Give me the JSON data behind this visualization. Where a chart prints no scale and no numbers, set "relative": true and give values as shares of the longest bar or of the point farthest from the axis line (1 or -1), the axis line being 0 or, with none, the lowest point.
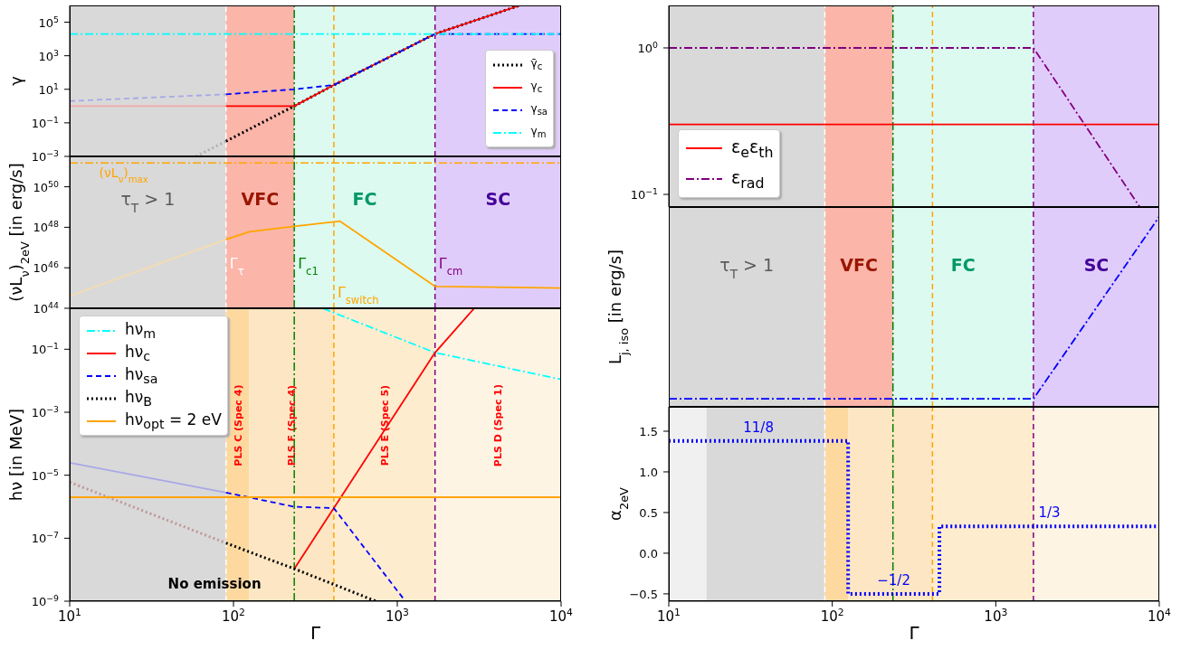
{
  "chart_data": [
    {
      "type": "line",
      "ylabel": "γ",
      "log": "xy",
      "xlim": [
        10,
        10000
      ],
      "ylim": [
        0.001,
        1000000
      ],
      "yticks": [
        {
          "value": 0.001,
          "label": "10$^{−3}$"
        },
        {
          "value": 0.1,
          "label": "10$^{−1}$"
        },
        {
          "value": 10,
          "label": "10$^{1}$"
        },
        {
          "value": 1000,
          "label": "10$^{3}$"
        },
        {
          "value": 100000,
          "label": "10$^{5}$"
        }
      ],
      "tick_labels": "y",
      "legend": "bottom right",
      "bands": [
        {
          "axis": "x",
          "from": 10,
          "to": 90,
          "color": "#d9d9d9"
        },
        {
          "axis": "x",
          "from": 90,
          "to": 235,
          "color": "#fbb5a9"
        },
        {
          "axis": "x",
          "from": 235,
          "to": 1700,
          "color": "#dcfaf0"
        },
        {
          "axis": "x",
          "from": 1700,
          "to": 10000,
          "color": "#e0ccfa"
        }
      ],
      "ref_lines": [
        {
          "axis": "x",
          "value": 90,
          "color": "#ffffff",
          "line_style": "dashed"
        },
        {
          "axis": "x",
          "value": 235,
          "color": "#008000",
          "line_style": "dashdot"
        },
        {
          "axis": "x",
          "value": 410,
          "color": "#ffa500",
          "line_style": "dashed"
        },
        {
          "axis": "x",
          "value": 1700,
          "color": "#800080",
          "line_style": "dashed"
        }
      ],
      "series": [
        {
          "color": "#b0b0b0",
          "line_style": "dotted",
          "x": [
            59,
            90
          ],
          "values": [
            0.001,
            0.008
          ]
        },
        {
          "color": "#f0a8a8",
          "line_style": "solid",
          "x": [
            10,
            90
          ],
          "values": [
            1,
            1
          ]
        },
        {
          "color": "#a8a8e8",
          "line_style": "dashed",
          "x": [
            10,
            90
          ],
          "values": [
            2,
            5
          ]
        },
        {
          "name": "γ̄$_{c}$",
          "color": "#000000",
          "line_style": "dotted",
          "x": [
            90,
            235,
            410,
            1700,
            5600
          ],
          "values": [
            0.008,
            1,
            18,
            20000,
            1000000
          ]
        },
        {
          "name": "γ$_{c}$",
          "color": "#ff0000",
          "line_style": "solid",
          "x": [
            90,
            235,
            410,
            1700,
            5600
          ],
          "values": [
            1,
            1,
            18,
            20000,
            1000000
          ]
        },
        {
          "name": "γ$_{sa}$",
          "color": "#0000ff",
          "line_style": "dashed",
          "x": [
            90,
            235,
            410,
            1700,
            10000
          ],
          "values": [
            5,
            10,
            18,
            20000,
            20000
          ]
        },
        {
          "name": "γ$_{m}$",
          "color": "#00ffff",
          "line_style": "dashdot",
          "x": [
            10,
            10000
          ],
          "values": [
            20000,
            20000
          ]
        }
      ]
    },
    {
      "type": "line",
      "ylabel": "(νL$_{ν}$)$_{2eV}$ [in erg/s]",
      "log": "xy",
      "xlim": [
        10,
        10000
      ],
      "ylim": [
        1e+44,
        3.16e+51
      ],
      "yticks": [
        {
          "value": 1e+44,
          "label": "10$^{44}$"
        },
        {
          "value": 1e+46,
          "label": "10$^{46}$"
        },
        {
          "value": 1e+48,
          "label": "10$^{48}$"
        },
        {
          "value": 1e+50,
          "label": "10$^{50}$"
        }
      ],
      "tick_labels": "y",
      "bands": [
        {
          "axis": "x",
          "from": 10,
          "to": 90,
          "color": "#d9d9d9",
          "label": "τ$_{T}$ > 1"
        },
        {
          "axis": "x",
          "from": 90,
          "to": 235,
          "color": "#fbb5a9",
          "label": "VFC"
        },
        {
          "axis": "x",
          "from": 235,
          "to": 1700,
          "color": "#dcfaf0",
          "label": "FC"
        },
        {
          "axis": "x",
          "from": 1700,
          "to": 10000,
          "color": "#e0ccfa",
          "label": "SC"
        }
      ],
      "ref_lines": [
        {
          "axis": "x",
          "value": 90,
          "color": "#ffffff",
          "line_style": "dashed",
          "label": "Γ$_{τ}$"
        },
        {
          "axis": "x",
          "value": 235,
          "color": "#008000",
          "line_style": "dashdot",
          "label": "Γ$_{c1}$"
        },
        {
          "axis": "x",
          "value": 410,
          "color": "#ffa500",
          "line_style": "dashed",
          "label": "Γ$_{switch}$"
        },
        {
          "axis": "x",
          "value": 1700,
          "color": "#800080",
          "line_style": "dashed",
          "label": "Γ$_{cm}$"
        },
        {
          "axis": "y",
          "value": 1.5e+51,
          "color": "#ffa500",
          "line_style": "dashdot",
          "label": "(νL$_{ν}$)$_{max}$"
        }
      ],
      "series": [
        {
          "color": "#f5dcb0",
          "line_style": "solid",
          "x": [
            10,
            90
          ],
          "values": [
            4e+44,
            2.5e+47
          ]
        },
        {
          "color": "#ffa500",
          "line_style": "solid",
          "x": [
            90,
            125,
            235,
            447,
            1700,
            10000
          ],
          "values": [
            2.5e+47,
            6e+47,
            1.1e+48,
            2e+48,
            1.2e+45,
            1e+45
          ]
        }
      ]
    },
    {
      "type": "line",
      "ylabel": "hν [in MeV]",
      "xlabel": "Γ",
      "log": "xy",
      "xlim": [
        10,
        10000
      ],
      "ylim": [
        1e-09,
        2
      ],
      "xticks": [
        {
          "value": 10,
          "label": "10$^{1}$"
        },
        {
          "value": 100,
          "label": "10$^{2}$"
        },
        {
          "value": 1000,
          "label": "10$^{3}$"
        },
        {
          "value": 10000,
          "label": "10$^{4}$"
        }
      ],
      "yticks": [
        {
          "value": 1e-09,
          "label": "10$^{−9}$"
        },
        {
          "value": 1e-07,
          "label": "10$^{−7}$"
        },
        {
          "value": 1e-05,
          "label": "10$^{−5}$"
        },
        {
          "value": 0.001,
          "label": "10$^{−3}$"
        },
        {
          "value": 0.1,
          "label": "10$^{−1}$"
        }
      ],
      "legend": "top left",
      "bands": [
        {
          "axis": "x",
          "from": 10,
          "to": 90,
          "color": "#d9d9d9"
        },
        {
          "axis": "x",
          "from": 90,
          "to": 125,
          "color": "#fdd9a0",
          "label": "PLS C (Spec 4)"
        },
        {
          "axis": "x",
          "from": 125,
          "to": 410,
          "color": "#fde6c3",
          "label": "PLS F (Spec 4)"
        },
        {
          "axis": "x",
          "from": 410,
          "to": 1700,
          "color": "#feeccf",
          "label": "PLS E (Spec 5)"
        },
        {
          "axis": "x",
          "from": 1700,
          "to": 10000,
          "color": "#fef4e4",
          "label": "PLS D (Spec 1)"
        }
      ],
      "ref_lines": [
        {
          "axis": "x",
          "value": 90,
          "color": "#ffffff",
          "line_style": "dashed"
        },
        {
          "axis": "x",
          "value": 235,
          "color": "#008000",
          "line_style": "dashdot"
        },
        {
          "axis": "x",
          "value": 410,
          "color": "#ffa500",
          "line_style": "dashed"
        },
        {
          "axis": "x",
          "value": 1700,
          "color": "#800080",
          "line_style": "dashed"
        }
      ],
      "annotations": [
        "No emission"
      ],
      "series": [
        {
          "color": "#a8a8e8",
          "line_style": "solid",
          "x": [
            10,
            90
          ],
          "values": [
            2.5e-05,
            2.8e-06
          ]
        },
        {
          "color": "#c09898",
          "line_style": "dotted",
          "x": [
            10,
            90
          ],
          "values": [
            6e-06,
            7e-08
          ]
        },
        {
          "name": "hν$_{m}$",
          "color": "#00ffff",
          "line_style": "dashdot",
          "x": [
            350,
            1700,
            10000
          ],
          "values": [
            2,
            0.078,
            0.011
          ]
        },
        {
          "name": "hν$_{c}$",
          "color": "#ff0000",
          "line_style": "solid",
          "x": [
            235,
            1700,
            2950
          ],
          "values": [
            1.07e-08,
            0.078,
            2
          ]
        },
        {
          "name": "hν$_{sa}$",
          "color": "#0000ff",
          "line_style": "dashed",
          "x": [
            90,
            235,
            410,
            1120
          ],
          "values": [
            2.8e-06,
            1e-06,
            9e-07,
            1e-09
          ]
        },
        {
          "name": "hν$_{B}$",
          "color": "#000000",
          "line_style": "dotted",
          "x": [
            90,
            235,
            410,
            740
          ],
          "values": [
            7e-08,
            1.07e-08,
            3.4e-09,
            1e-09
          ]
        },
        {
          "name": "hν$_{opt}$ = 2 eV",
          "color": "#ffa500",
          "line_style": "solid",
          "x": [
            10,
            10000
          ],
          "values": [
            2e-06,
            2e-06
          ]
        }
      ]
    },
    {
      "type": "line",
      "log": "xy",
      "xlim": [
        10,
        10000
      ],
      "ylim": [
        0.082,
        1.95
      ],
      "yticks": [
        {
          "value": 0.1,
          "label": "10$^{−1}$"
        },
        {
          "value": 1,
          "label": "10$^{0}$"
        }
      ],
      "tick_labels": "y",
      "legend": "bottom left",
      "bands": [
        {
          "axis": "x",
          "from": 10,
          "to": 90,
          "color": "#d9d9d9"
        },
        {
          "axis": "x",
          "from": 90,
          "to": 235,
          "color": "#fbb5a9"
        },
        {
          "axis": "x",
          "from": 235,
          "to": 1700,
          "color": "#dcfaf0"
        },
        {
          "axis": "x",
          "from": 1700,
          "to": 10000,
          "color": "#e0ccfa"
        }
      ],
      "ref_lines": [
        {
          "axis": "x",
          "value": 90,
          "color": "#ffffff",
          "line_style": "dashed"
        },
        {
          "axis": "x",
          "value": 235,
          "color": "#008000",
          "line_style": "dashdot"
        },
        {
          "axis": "x",
          "value": 410,
          "color": "#ffa500",
          "line_style": "dashed"
        },
        {
          "axis": "x",
          "value": 1700,
          "color": "#800080",
          "line_style": "dashed"
        }
      ],
      "series": [
        {
          "name": "ε$_{e}$ε$_{th}$",
          "color": "#ff0000",
          "line_style": "solid",
          "x": [
            10,
            10000
          ],
          "values": [
            0.3,
            0.3
          ]
        },
        {
          "name": "ε$_{rad}$",
          "color": "#800080",
          "line_style": "dashdot",
          "x": [
            10,
            1700,
            7600
          ],
          "values": [
            1,
            1,
            0.082
          ]
        }
      ]
    },
    {
      "type": "line",
      "ylabel": "L$_{j, iso}$ [in erg/s]",
      "relative": true,
      "log": "x",
      "xlim": [
        10,
        10000
      ],
      "tick_labels": false,
      "bands": [
        {
          "axis": "x",
          "from": 10,
          "to": 90,
          "color": "#d9d9d9",
          "label": "τ$_{T}$ > 1"
        },
        {
          "axis": "x",
          "from": 90,
          "to": 235,
          "color": "#fbb5a9",
          "label": "VFC"
        },
        {
          "axis": "x",
          "from": 235,
          "to": 1700,
          "color": "#dcfaf0",
          "label": "FC"
        },
        {
          "axis": "x",
          "from": 1700,
          "to": 10000,
          "color": "#e0ccfa",
          "label": "SC"
        }
      ],
      "ref_lines": [
        {
          "axis": "x",
          "value": 90,
          "color": "#ffffff",
          "line_style": "dashed"
        },
        {
          "axis": "x",
          "value": 235,
          "color": "#008000",
          "line_style": "dashdot"
        },
        {
          "axis": "x",
          "value": 410,
          "color": "#ffa500",
          "line_style": "dashed"
        },
        {
          "axis": "x",
          "value": 1700,
          "color": "#800080",
          "line_style": "dashed"
        }
      ],
      "series": [
        {
          "color": "#0000ff",
          "line_style": "dashdot",
          "x": [
            10,
            1700,
            10000
          ],
          "values": [
            0.042,
            0.042,
            1
          ]
        }
      ]
    },
    {
      "type": "step",
      "ylabel": "α$_{2eV}$",
      "xlabel": "Γ",
      "log": "x",
      "xlim": [
        10,
        10000
      ],
      "ylim": [
        -0.59,
        1.8
      ],
      "xticks": [
        {
          "value": 10,
          "label": "10$^{1}$"
        },
        {
          "value": 100,
          "label": "10$^{2}$"
        },
        {
          "value": 1000,
          "label": "10$^{3}$"
        },
        {
          "value": 10000,
          "label": "10$^{4}$"
        }
      ],
      "yticks": [
        {
          "value": -0.5,
          "label": "−0.5"
        },
        {
          "value": 0,
          "label": "0.0"
        },
        {
          "value": 0.5,
          "label": "0.5"
        },
        {
          "value": 1,
          "label": "1.0"
        },
        {
          "value": 1.5,
          "label": "1.5"
        }
      ],
      "bands": [
        {
          "axis": "x",
          "from": 10,
          "to": 17,
          "color": "#f0f0f0"
        },
        {
          "axis": "x",
          "from": 17,
          "to": 90,
          "color": "#d9d9d9"
        },
        {
          "axis": "x",
          "from": 90,
          "to": 125,
          "color": "#fdd9a0"
        },
        {
          "axis": "x",
          "from": 125,
          "to": 410,
          "color": "#fde6c3"
        },
        {
          "axis": "x",
          "from": 410,
          "to": 1700,
          "color": "#feeccf"
        },
        {
          "axis": "x",
          "from": 1700,
          "to": 10000,
          "color": "#fef4e4"
        }
      ],
      "ref_lines": [
        {
          "axis": "x",
          "value": 90,
          "color": "#ffffff",
          "line_style": "dashed"
        },
        {
          "axis": "x",
          "value": 235,
          "color": "#008000",
          "line_style": "dashdot"
        },
        {
          "axis": "x",
          "value": 410,
          "color": "#ffa500",
          "line_style": "dashed"
        },
        {
          "axis": "x",
          "value": 1700,
          "color": "#800080",
          "line_style": "dashed"
        }
      ],
      "annotations": [
        "11/8",
        "−1/2",
        "1/3"
      ],
      "series": [
        {
          "color": "#0000ff",
          "line_style": "dotted",
          "x": [
            10,
            125,
            452,
            10000
          ],
          "values": [
            1.38,
            -0.5,
            0.33,
            0.33
          ]
        }
      ]
    }
  ]
}
